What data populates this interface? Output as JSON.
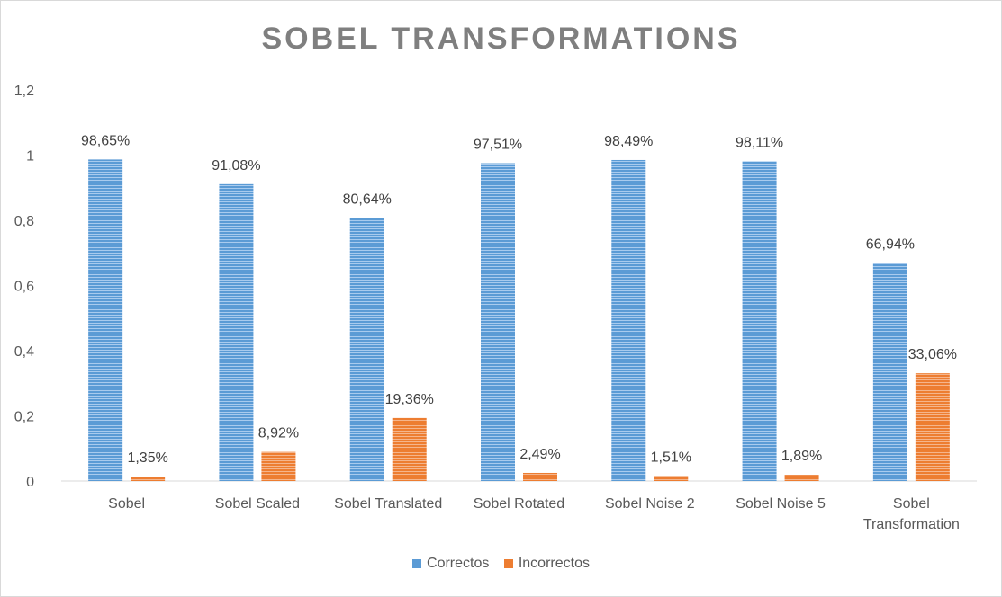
{
  "chart_data": {
    "type": "bar",
    "title": "SOBEL TRANSFORMATIONS",
    "categories": [
      "Sobel",
      "Sobel Scaled",
      "Sobel Translated",
      "Sobel Rotated",
      "Sobel Noise 2",
      "Sobel Noise 5",
      "Sobel Transformation"
    ],
    "series": [
      {
        "name": "Correctos",
        "color": "#5b9bd5",
        "values": [
          0.9865,
          0.9108,
          0.8064,
          0.9751,
          0.9849,
          0.9811,
          0.6694
        ],
        "labels": [
          "98,65%",
          "91,08%",
          "80,64%",
          "97,51%",
          "98,49%",
          "98,11%",
          "66,94%"
        ]
      },
      {
        "name": "Incorrectos",
        "color": "#ed7d31",
        "values": [
          0.0135,
          0.0892,
          0.1936,
          0.0249,
          0.0151,
          0.0189,
          0.3306
        ],
        "labels": [
          "1,35%",
          "8,92%",
          "19,36%",
          "2,49%",
          "1,51%",
          "1,89%",
          "33,06%"
        ]
      }
    ],
    "ylim": [
      0,
      1.2
    ],
    "yticks": [
      0,
      0.2,
      0.4,
      0.6,
      0.8,
      1,
      1.2
    ],
    "ytick_labels": [
      "0",
      "0,2",
      "0,4",
      "0,6",
      "0,8",
      "1",
      "1,2"
    ],
    "grid": false,
    "legend_position": "bottom"
  }
}
